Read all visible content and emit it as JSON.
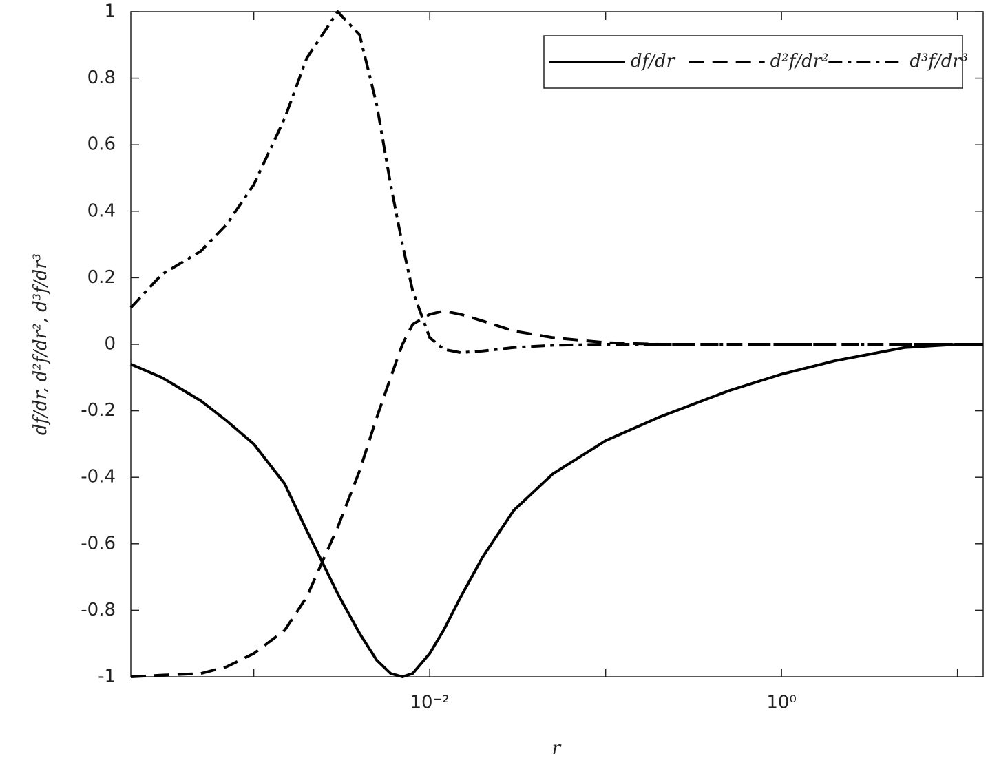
{
  "chart_data": {
    "type": "line",
    "xlabel": "r",
    "ylabel": "df/dr, d²f/dr², d³f/dr³",
    "x": [
      0.0002,
      0.0003,
      0.0005,
      0.0007,
      0.001,
      0.0015,
      0.002,
      0.003,
      0.004,
      0.005,
      0.006,
      0.007,
      0.008,
      0.01,
      0.012,
      0.015,
      0.02,
      0.03,
      0.05,
      0.1,
      0.2,
      0.5,
      1,
      2,
      5,
      10,
      14
    ],
    "series": [
      {
        "name": "df/dr",
        "color": "#000000",
        "style": "solid",
        "values": [
          -0.06,
          -0.1,
          -0.17,
          -0.23,
          -0.3,
          -0.42,
          -0.56,
          -0.75,
          -0.87,
          -0.95,
          -0.99,
          -1.0,
          -0.99,
          -0.93,
          -0.86,
          -0.76,
          -0.64,
          -0.5,
          -0.39,
          -0.29,
          -0.22,
          -0.14,
          -0.09,
          -0.05,
          -0.01,
          0,
          0
        ]
      },
      {
        "name": "d²f/dr²",
        "color": "#000000",
        "style": "dashed",
        "values": [
          -1.0,
          -0.995,
          -0.99,
          -0.97,
          -0.93,
          -0.86,
          -0.76,
          -0.55,
          -0.38,
          -0.22,
          -0.1,
          0.0,
          0.06,
          0.09,
          0.1,
          0.09,
          0.07,
          0.04,
          0.02,
          0.005,
          0,
          0,
          0,
          0,
          0,
          0,
          0
        ]
      },
      {
        "name": "d³f/dr³",
        "color": "#000000",
        "style": "dashdot",
        "values": [
          0.11,
          0.21,
          0.28,
          0.36,
          0.48,
          0.68,
          0.86,
          1.0,
          0.93,
          0.72,
          0.48,
          0.3,
          0.16,
          0.02,
          -0.015,
          -0.025,
          -0.02,
          -0.01,
          -0.003,
          0,
          0,
          0,
          0,
          0,
          0,
          0,
          0
        ]
      }
    ],
    "xscale": "log",
    "xlim": [
      0.0002,
      14
    ],
    "xticks": [
      {
        "value": 0.01,
        "label": "10⁻²"
      },
      {
        "value": 1,
        "label": "10⁰"
      }
    ],
    "xminor_ticks": [
      0.001,
      0.1,
      10
    ],
    "ylim": [
      -1,
      1
    ],
    "yticks": [
      -1,
      -0.8,
      -0.6,
      -0.4,
      -0.2,
      0,
      0.2,
      0.4,
      0.6,
      0.8,
      1
    ],
    "grid": false,
    "legend": "top-right"
  }
}
